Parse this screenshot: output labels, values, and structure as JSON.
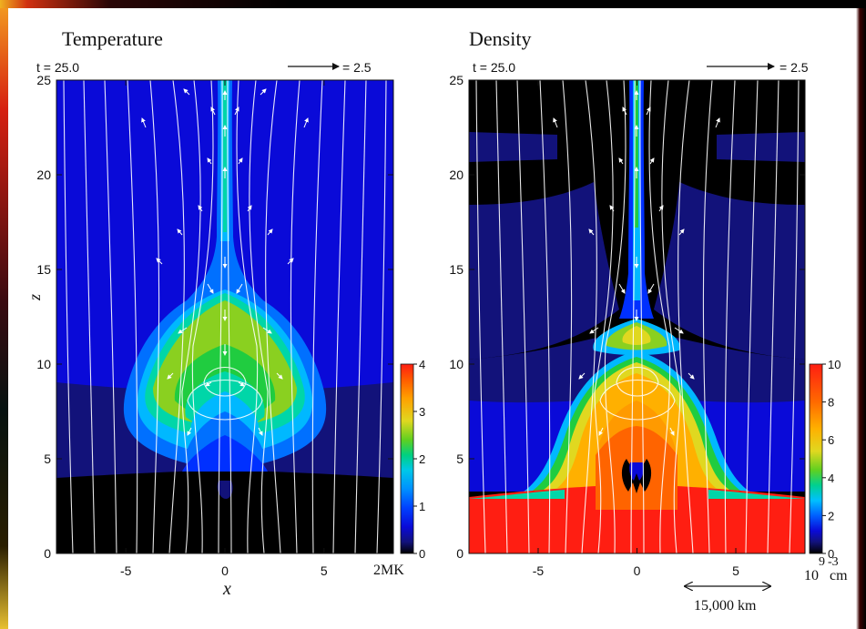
{
  "colors": {
    "background": "#ffffff",
    "field_black": "#000000",
    "field_lines": "#ffffff",
    "colorscale": [
      "#000000",
      "#12127a",
      "#0a0ad8",
      "#0030ff",
      "#0070ff",
      "#00b8ff",
      "#00d6a8",
      "#20cc40",
      "#8ad020",
      "#e0d820",
      "#ffb000",
      "#ff6400",
      "#ff1e12"
    ]
  },
  "chart_data": [
    {
      "type": "heatmap",
      "title": "Temperature",
      "time_label": "t = 25.0",
      "vector_scale_label": "= 2.5",
      "xlabel": "x",
      "ylabel": "z",
      "xticks": [
        "-5",
        "0",
        "5"
      ],
      "yticks": [
        "0",
        "5",
        "10",
        "15",
        "20",
        "25"
      ],
      "xlim": [
        -8.5,
        8.5
      ],
      "ylim": [
        0,
        25
      ],
      "colorbar": {
        "ticks": [
          "0",
          "1",
          "2",
          "3",
          "4"
        ],
        "range": [
          0,
          4
        ],
        "unit_label": "2MK"
      }
    },
    {
      "type": "heatmap",
      "title": "Density",
      "time_label": "t = 25.0",
      "vector_scale_label": "= 2.5",
      "xlabel": "",
      "ylabel": "",
      "xticks": [
        "-5",
        "0",
        "5"
      ],
      "yticks": [
        "0",
        "5",
        "10",
        "15",
        "20",
        "25"
      ],
      "xlim": [
        -8.5,
        8.5
      ],
      "ylim": [
        0,
        25
      ],
      "colorbar": {
        "ticks": [
          "0",
          "2",
          "4",
          "6",
          "8",
          "10"
        ],
        "range": [
          0,
          10
        ],
        "unit_base": "10",
        "unit_exponent": "9",
        "unit_suffix": "cm",
        "unit_suffix_exponent": "-3"
      },
      "scale_bar_label": "15,000 km"
    }
  ]
}
